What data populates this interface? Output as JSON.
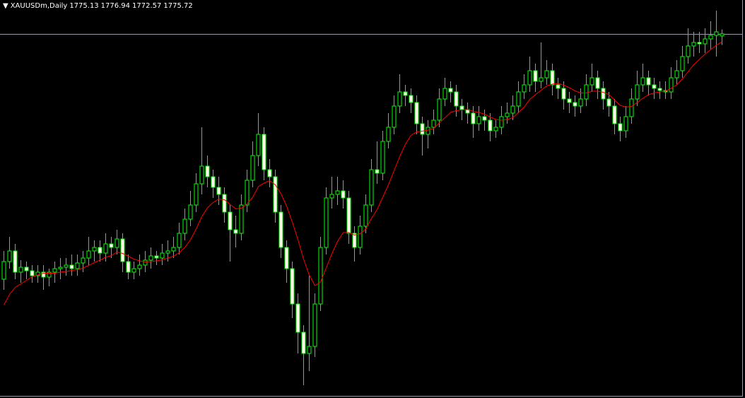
{
  "chart_data": {
    "type": "candlestick",
    "title": "XAUUSDm,Daily",
    "ylim": [
      1672.7,
      1785.3
    ],
    "up_color": "#000000",
    "down_color": "#f8f8e4",
    "wick_color": "#00ff00",
    "ma_color": "#ff0000",
    "bid_line_color": "#9a9aa8",
    "open": [
      1706.3,
      1711.3,
      1714.3,
      1708.3,
      1709.7,
      1708.7,
      1707.3,
      1708.3,
      1706.9,
      1708.3,
      1709.3,
      1709.7,
      1710.3,
      1709.3,
      1710.9,
      1712.3,
      1714.3,
      1715.3,
      1713.7,
      1716.3,
      1715.3,
      1717.7,
      1711.3,
      1708.3,
      1709.3,
      1710.3,
      1711.7,
      1712.9,
      1712.3,
      1713.7,
      1714.3,
      1715.3,
      1719.3,
      1723.3,
      1727.3,
      1733.3,
      1738.3,
      1735.3,
      1732.3,
      1730.3,
      1725.3,
      1720.3,
      1719.3,
      1727.3,
      1734.3,
      1741.3,
      1747.3,
      1737.3,
      1735.3,
      1725.3,
      1715.3,
      1709.3,
      1699.3,
      1691.3,
      1685.3,
      1687.3,
      1699.3,
      1715.3,
      1729.3,
      1730.3,
      1731.3,
      1729.3,
      1719.3,
      1715.3,
      1721.3,
      1727.3,
      1737.3,
      1736.3,
      1745.3,
      1749.3,
      1755.3,
      1759.3,
      1758.3,
      1756.3,
      1750.3,
      1747.3,
      1749.3,
      1751.3,
      1757.3,
      1760.3,
      1759.3,
      1755.3,
      1754.3,
      1753.3,
      1750.3,
      1752.3,
      1751.3,
      1748.3,
      1749.3,
      1752.3,
      1753.3,
      1755.3,
      1759.3,
      1761.3,
      1765.3,
      1762.3,
      1763.3,
      1765.3,
      1761.3,
      1760.3,
      1757.3,
      1756.3,
      1755.3,
      1757.3,
      1761.3,
      1763.3,
      1760.3,
      1757.3,
      1755.3,
      1750.3,
      1748.3,
      1752.3,
      1757.3,
      1761.3,
      1763.3,
      1761.3,
      1760.3,
      1759.7,
      1759.3,
      1763.3,
      1765.3,
      1769.3,
      1772.3,
      1773.3,
      1772.9,
      1774.3,
      1775.3,
      1775.13
    ],
    "high": [
      1714.3,
      1718.3,
      1716.3,
      1711.7,
      1711.3,
      1710.3,
      1710.3,
      1710.3,
      1709.3,
      1711.3,
      1712.3,
      1712.3,
      1713.3,
      1713.3,
      1714.3,
      1718.3,
      1717.3,
      1717.3,
      1719.3,
      1718.3,
      1720.3,
      1719.3,
      1713.3,
      1711.3,
      1713.3,
      1714.3,
      1715.3,
      1714.3,
      1716.3,
      1717.3,
      1718.3,
      1722.3,
      1726.3,
      1731.3,
      1736.3,
      1749.3,
      1741.3,
      1737.3,
      1735.3,
      1732.3,
      1727.3,
      1724.3,
      1730.3,
      1737.3,
      1745.3,
      1753.3,
      1749.3,
      1740.3,
      1737.3,
      1727.3,
      1717.3,
      1711.3,
      1702.3,
      1693.3,
      1707.3,
      1702.3,
      1718.3,
      1732.3,
      1735.3,
      1735.3,
      1734.3,
      1731.3,
      1721.3,
      1724.3,
      1730.3,
      1740.3,
      1745.3,
      1748.3,
      1753.3,
      1758.3,
      1764.3,
      1761.3,
      1760.3,
      1758.3,
      1752.3,
      1751.3,
      1754.3,
      1760.3,
      1763.3,
      1762.3,
      1761.3,
      1757.3,
      1756.3,
      1755.3,
      1755.3,
      1754.3,
      1753.3,
      1751.3,
      1755.3,
      1756.3,
      1758.3,
      1762.3,
      1764.3,
      1769.3,
      1767.3,
      1773.3,
      1768.3,
      1767.3,
      1763.3,
      1762.3,
      1759.3,
      1758.3,
      1760.3,
      1764.3,
      1767.3,
      1765.3,
      1762.3,
      1759.3,
      1757.3,
      1752.3,
      1755.3,
      1760.3,
      1765.3,
      1767.3,
      1765.3,
      1763.3,
      1762.3,
      1762.3,
      1766.3,
      1768.3,
      1772.3,
      1777.3,
      1776.3,
      1776.3,
      1777.3,
      1779.3,
      1782.3,
      1776.94
    ],
    "low": [
      1703.3,
      1709.3,
      1706.3,
      1705.3,
      1706.3,
      1705.3,
      1705.3,
      1703.3,
      1704.3,
      1705.3,
      1706.3,
      1707.3,
      1707.3,
      1707.3,
      1708.3,
      1710.3,
      1711.3,
      1711.3,
      1711.3,
      1712.3,
      1713.3,
      1708.3,
      1706.3,
      1706.3,
      1707.3,
      1708.3,
      1709.3,
      1710.3,
      1710.3,
      1711.3,
      1712.3,
      1713.3,
      1717.3,
      1721.3,
      1725.3,
      1730.3,
      1732.3,
      1729.3,
      1727.3,
      1722.3,
      1711.3,
      1715.3,
      1717.3,
      1725.3,
      1732.3,
      1738.3,
      1734.3,
      1732.3,
      1722.3,
      1712.3,
      1705.3,
      1695.3,
      1685.3,
      1676.3,
      1680.3,
      1684.3,
      1697.3,
      1713.3,
      1726.3,
      1727.3,
      1726.3,
      1716.3,
      1711.3,
      1713.3,
      1719.3,
      1725.3,
      1733.3,
      1734.3,
      1743.3,
      1747.3,
      1753.3,
      1755.3,
      1753.3,
      1747.3,
      1741.3,
      1743.3,
      1747.3,
      1749.3,
      1755.3,
      1756.3,
      1752.3,
      1751.3,
      1750.3,
      1746.3,
      1748.3,
      1748.3,
      1745.3,
      1746.3,
      1747.3,
      1750.3,
      1751.3,
      1753.3,
      1757.3,
      1759.3,
      1759.3,
      1760.3,
      1761.3,
      1758.3,
      1757.3,
      1754.3,
      1753.3,
      1752.3,
      1753.3,
      1755.3,
      1759.3,
      1757.3,
      1754.3,
      1752.3,
      1747.3,
      1745.3,
      1746.3,
      1750.3,
      1755.3,
      1759.3,
      1758.3,
      1757.3,
      1757.3,
      1757.3,
      1757.3,
      1761.3,
      1763.3,
      1767.3,
      1769.3,
      1770.3,
      1770.3,
      1771.3,
      1769.3,
      1772.57
    ],
    "close": [
      1711.3,
      1714.3,
      1708.3,
      1709.7,
      1708.7,
      1707.3,
      1708.3,
      1706.9,
      1708.3,
      1709.3,
      1709.7,
      1710.3,
      1709.3,
      1710.9,
      1712.3,
      1714.3,
      1715.3,
      1713.7,
      1716.3,
      1715.3,
      1717.7,
      1711.3,
      1708.3,
      1709.3,
      1710.3,
      1711.7,
      1712.9,
      1712.3,
      1713.7,
      1714.3,
      1715.3,
      1719.3,
      1723.3,
      1727.3,
      1733.3,
      1738.3,
      1735.3,
      1732.3,
      1730.3,
      1725.3,
      1720.3,
      1719.3,
      1727.3,
      1734.3,
      1741.3,
      1747.3,
      1737.3,
      1735.3,
      1725.3,
      1715.3,
      1709.3,
      1699.3,
      1691.3,
      1685.3,
      1687.3,
      1699.3,
      1715.3,
      1729.3,
      1730.3,
      1731.3,
      1729.3,
      1719.3,
      1715.3,
      1721.3,
      1727.3,
      1737.3,
      1736.3,
      1745.3,
      1749.3,
      1755.3,
      1759.3,
      1758.3,
      1756.3,
      1750.3,
      1747.3,
      1749.3,
      1751.3,
      1757.3,
      1760.3,
      1759.3,
      1755.3,
      1754.3,
      1753.3,
      1750.3,
      1752.3,
      1751.3,
      1748.3,
      1749.3,
      1752.3,
      1753.3,
      1755.3,
      1759.3,
      1761.3,
      1765.3,
      1762.3,
      1763.3,
      1765.3,
      1761.3,
      1760.3,
      1757.3,
      1756.3,
      1755.3,
      1757.3,
      1761.3,
      1763.3,
      1760.3,
      1757.3,
      1755.3,
      1750.3,
      1748.3,
      1752.3,
      1757.3,
      1761.3,
      1763.3,
      1761.3,
      1760.3,
      1759.7,
      1759.3,
      1763.3,
      1765.3,
      1769.3,
      1772.3,
      1773.3,
      1772.9,
      1774.3,
      1775.3,
      1776.3,
      1775.72
    ],
    "ma": [
      1699,
      1702,
      1704,
      1705,
      1706,
      1707,
      1707.5,
      1708,
      1708,
      1708,
      1708.3,
      1708.5,
      1708.8,
      1709,
      1709.5,
      1710.2,
      1711,
      1711.7,
      1712.5,
      1713,
      1714,
      1713.6,
      1712.8,
      1712,
      1711.5,
      1711.2,
      1711.3,
      1711.5,
      1711.8,
      1712.3,
      1712.8,
      1713.8,
      1715.3,
      1717.5,
      1720.5,
      1724,
      1726.5,
      1728,
      1729,
      1728.8,
      1727.5,
      1726.2,
      1726.4,
      1727.6,
      1729.5,
      1732.5,
      1733.5,
      1734.2,
      1733,
      1730.5,
      1727,
      1722.5,
      1717.5,
      1712,
      1707.5,
      1704.5,
      1705.5,
      1709.5,
      1713.5,
      1717,
      1719.5,
      1719.5,
      1718.8,
      1719.2,
      1720.5,
      1723.5,
      1726,
      1729.5,
      1733,
      1737,
      1741,
      1744.5,
      1747,
      1748,
      1748.2,
      1748.5,
      1749,
      1750.5,
      1752,
      1753.5,
      1754,
      1754.2,
      1754.3,
      1753.8,
      1753.5,
      1753,
      1752.2,
      1751.5,
      1751.3,
      1751.5,
      1752,
      1753.5,
      1755,
      1757.2,
      1758.5,
      1759.8,
      1761,
      1761.5,
      1761.7,
      1761.2,
      1760.5,
      1759.6,
      1759,
      1759,
      1759.5,
      1759.5,
      1759.2,
      1758.5,
      1757,
      1755.5,
      1755,
      1755.2,
      1756.3,
      1757.5,
      1758.5,
      1759,
      1759.3,
      1759.5,
      1760.3,
      1761.3,
      1763,
      1765,
      1767,
      1768.5,
      1770,
      1771.3,
      1772.5,
      1773.5
    ]
  }
}
